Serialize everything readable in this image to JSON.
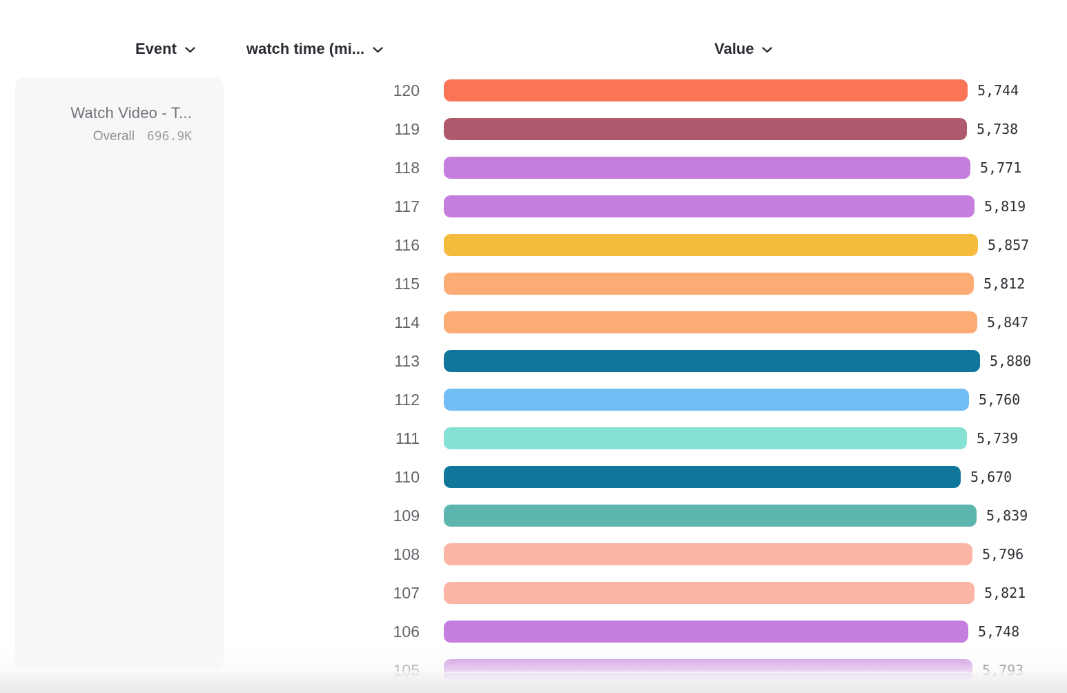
{
  "columns": {
    "event": "Event",
    "measure": "watch time (mi...",
    "value": "Value"
  },
  "event_card": {
    "title": "Watch Video - T...",
    "segment": "Overall",
    "total": "696.9K"
  },
  "chart_data": {
    "type": "bar",
    "orientation": "horizontal",
    "title": "",
    "xlabel": "Value",
    "ylabel": "watch time (min)",
    "categories": [
      "120",
      "119",
      "118",
      "117",
      "116",
      "115",
      "114",
      "113",
      "112",
      "111",
      "110",
      "109",
      "108",
      "107",
      "106",
      "105"
    ],
    "values": [
      5744,
      5738,
      5771,
      5819,
      5857,
      5812,
      5847,
      5880,
      5760,
      5739,
      5670,
      5839,
      5796,
      5821,
      5748,
      5793
    ],
    "value_labels": [
      "5,744",
      "5,738",
      "5,771",
      "5,819",
      "5,857",
      "5,812",
      "5,847",
      "5,880",
      "5,760",
      "5,739",
      "5,670",
      "5,839",
      "5,796",
      "5,821",
      "5,748",
      "5,793"
    ],
    "bar_colors": [
      "#FB7456",
      "#AF5A6C",
      "#C67EDE",
      "#C67EDE",
      "#F5BB3D",
      "#FBAC74",
      "#FBAC74",
      "#10779B",
      "#72BDF4",
      "#84E1D3",
      "#10779B",
      "#5CB6AE",
      "#FCB5A4",
      "#FCB5A4",
      "#C67EDE",
      "#C67EDE"
    ],
    "xlim": [
      0,
      5880
    ],
    "grid": false,
    "legend": "none"
  },
  "ui_colors": {
    "header_text": "#2b2b33",
    "row_label": "#63636b",
    "value_text": "#2e2e35",
    "card_bg": "#f7f7f8",
    "background": "#ffffff"
  }
}
